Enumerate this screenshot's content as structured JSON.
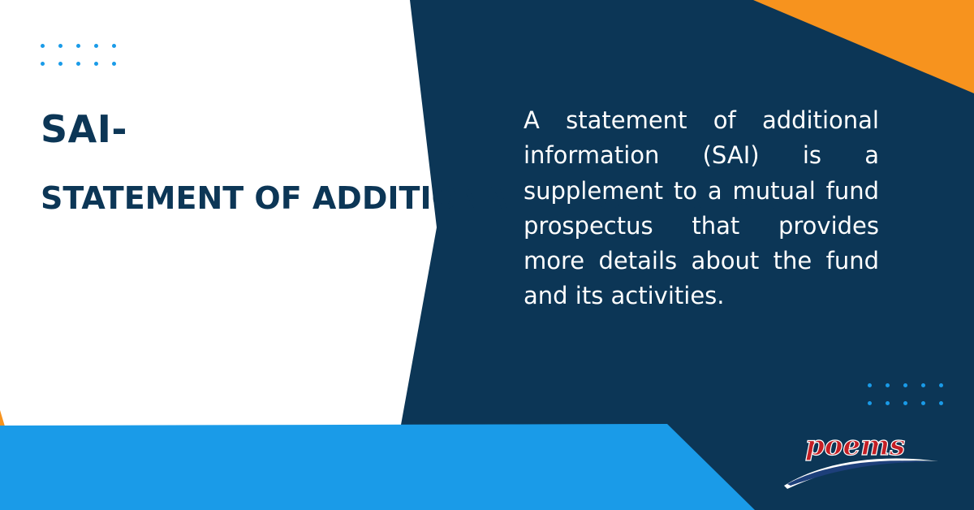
{
  "colors": {
    "navy": "#0c3656",
    "orange": "#f7931e",
    "blue": "#1a9be8",
    "white": "#ffffff",
    "logo_red": "#c41e24"
  },
  "title": {
    "line1": "SAI-",
    "line2": "STATEMENT OF ADDITIONAL INFORMATION"
  },
  "description": "A statement of additional information (SAI) is a supplement to a mutual fund prospectus that provides more details about the fund and its activities.",
  "logo": {
    "text": "poems",
    "icon": "poems-swoosh-logo"
  },
  "decorations": {
    "dot_icon": "dot-grid-icon"
  }
}
